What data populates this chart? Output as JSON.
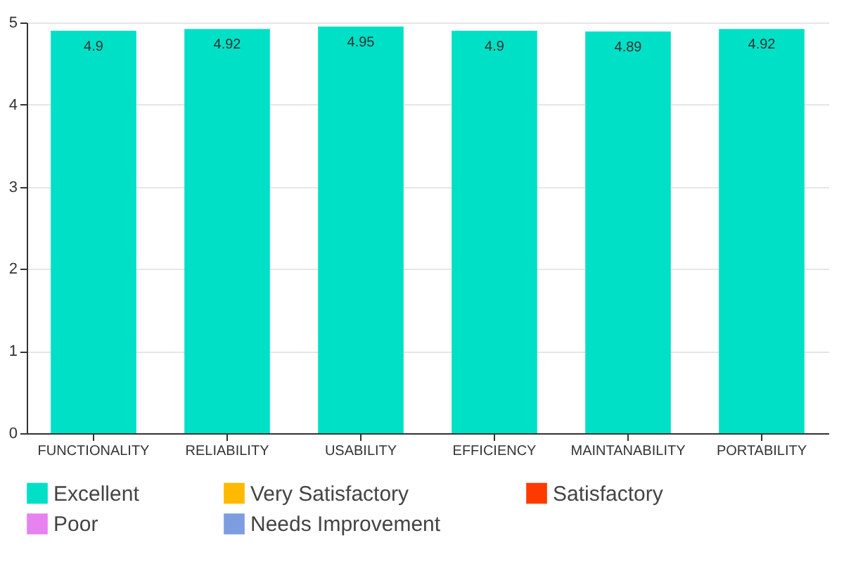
{
  "chart_data": {
    "type": "bar",
    "categories": [
      "FUNCTIONALITY",
      "RELIABILITY",
      "USABILITY",
      "EFFICIENCY",
      "MAINTANABILITY",
      "PORTABILITY"
    ],
    "series": [
      {
        "name": "Excellent",
        "color": "#00e0c6",
        "values": [
          4.9,
          4.92,
          4.95,
          4.9,
          4.89,
          4.92
        ]
      },
      {
        "name": "Very Satisfactory",
        "color": "#ffb900",
        "values": [
          null,
          null,
          null,
          null,
          null,
          null
        ]
      },
      {
        "name": "Satisfactory",
        "color": "#ff3a00",
        "values": [
          null,
          null,
          null,
          null,
          null,
          null
        ]
      },
      {
        "name": "Poor",
        "color": "#e882f0",
        "values": [
          null,
          null,
          null,
          null,
          null,
          null
        ]
      },
      {
        "name": "Needs Improvement",
        "color": "#7e9de0",
        "values": [
          null,
          null,
          null,
          null,
          null,
          null
        ]
      }
    ],
    "ylim": [
      0,
      5
    ],
    "yticks": [
      0,
      1,
      2,
      3,
      4,
      5
    ],
    "grid": "y",
    "legend": "bottom",
    "data_labels": true
  }
}
